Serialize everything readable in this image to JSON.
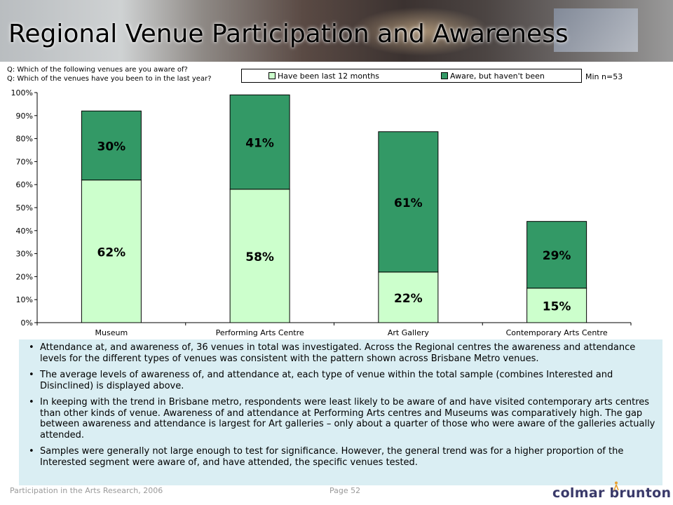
{
  "title": "Regional Venue Participation and Awareness",
  "questions": [
    "Q: Which of the following venues are you aware of?",
    "Q: Which of the venues have you been to in the last year?"
  ],
  "min_n": "Min n=53",
  "colors": {
    "been": "#ccffcc",
    "aware": "#339966",
    "notes_bg": "#daeef3"
  },
  "chart_data": {
    "type": "bar",
    "stacked": true,
    "categories": [
      "Museum",
      "Performing Arts Centre",
      "Art Gallery",
      "Contemporary Arts Centre"
    ],
    "series": [
      {
        "name": "Have been last 12 months",
        "values": [
          62,
          58,
          22,
          15
        ],
        "labels": [
          "62%",
          "58%",
          "22%",
          "15%"
        ]
      },
      {
        "name": "Aware, but haven't been",
        "values": [
          30,
          41,
          61,
          29
        ],
        "labels": [
          "30%",
          "41%",
          "61%",
          "29%"
        ]
      }
    ],
    "yticks": [
      "0%",
      "10%",
      "20%",
      "30%",
      "40%",
      "50%",
      "60%",
      "70%",
      "80%",
      "90%",
      "100%"
    ],
    "ylim": [
      0,
      100
    ],
    "legend_position": "top",
    "grid": false
  },
  "notes": [
    "Attendance at, and awareness of, 36 venues in total was investigated.  Across the Regional centres the awareness and attendance levels for the different types of venues was consistent with the pattern shown across Brisbane Metro venues.",
    "The average levels of awareness of, and attendance at, each type of venue within the total sample (combines Interested and Disinclined) is displayed above.",
    "In keeping with the trend in Brisbane metro, respondents were least likely to be aware of and have visited contemporary arts centres than other kinds of venue. Awareness of and attendance at Performing Arts centres and Museums was comparatively high.  The gap between awareness and attendance is largest for Art galleries – only about a quarter of those who were aware of the galleries actually attended.",
    "Samples were generally not large enough to test for significance.  However, the general trend was for a higher proportion of the Interested segment were aware of, and have attended, the specific venues tested."
  ],
  "footer": {
    "source": "Participation in the Arts Research, 2006",
    "page": "Page 52",
    "logo_text": "colmar brunton"
  }
}
